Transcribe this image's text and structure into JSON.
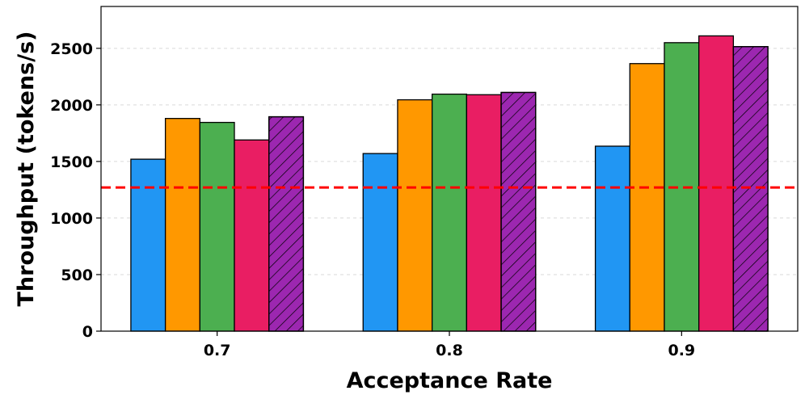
{
  "chart_data": {
    "type": "bar",
    "title": "",
    "xlabel": "Acceptance Rate",
    "ylabel": "Throughput (tokens/s)",
    "categories": [
      "0.7",
      "0.8",
      "0.9"
    ],
    "ylim": [
      0,
      2870
    ],
    "yticks": [
      0,
      500,
      1000,
      1500,
      2000,
      2500
    ],
    "grid": true,
    "legend": "none",
    "reference_line": {
      "value": 1270,
      "color": "#ff0000",
      "style": "dashed"
    },
    "series": [
      {
        "color": "#2196f3",
        "hatch": false,
        "values": [
          1520,
          1570,
          1635
        ]
      },
      {
        "color": "#ff9800",
        "hatch": false,
        "values": [
          1880,
          2045,
          2365
        ]
      },
      {
        "color": "#4caf50",
        "hatch": false,
        "values": [
          1845,
          2095,
          2550
        ]
      },
      {
        "color": "#e91e63",
        "hatch": false,
        "values": [
          1690,
          2090,
          2610
        ]
      },
      {
        "color": "#9c27b0",
        "hatch": true,
        "values": [
          1895,
          2110,
          2515
        ]
      }
    ]
  }
}
